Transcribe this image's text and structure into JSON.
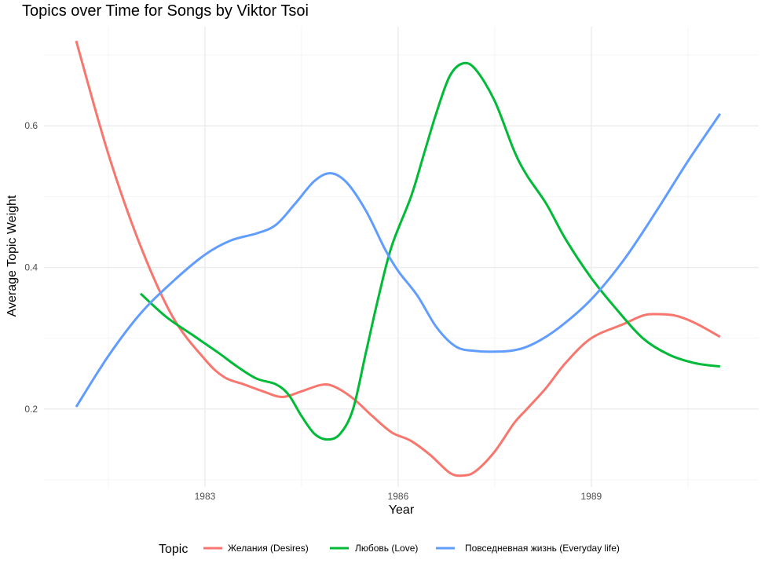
{
  "chart_data": {
    "type": "line",
    "title": "Topics over Time for Songs by Viktor Tsoi",
    "xlabel": "Year",
    "ylabel": "Average Topic Weight",
    "xlim": [
      1980.5,
      1991.6
    ],
    "ylim": [
      0.09,
      0.74
    ],
    "x_major_ticks": [
      1983,
      1986,
      1989
    ],
    "x_tick_labels": [
      "1983",
      "1986",
      "1989"
    ],
    "x_minor_ticks": [
      1981.5,
      1984.5,
      1987.5,
      1990.5
    ],
    "y_major_ticks": [
      0.2,
      0.4,
      0.6
    ],
    "y_tick_labels": [
      "0.2",
      "0.4",
      "0.6"
    ],
    "y_minor_ticks": [
      0.1,
      0.3,
      0.5,
      0.7
    ],
    "grid": true,
    "legend": {
      "title": "Topic",
      "position": "bottom"
    },
    "series": [
      {
        "name": "Желания (Desires)",
        "color": "#F8766D",
        "points": [
          [
            1981.0,
            0.72
          ],
          [
            1981.5,
            0.56
          ],
          [
            1982.0,
            0.43
          ],
          [
            1982.5,
            0.33
          ],
          [
            1983.0,
            0.27
          ],
          [
            1983.3,
            0.245
          ],
          [
            1983.6,
            0.235
          ],
          [
            1983.9,
            0.225
          ],
          [
            1984.2,
            0.217
          ],
          [
            1984.5,
            0.225
          ],
          [
            1984.8,
            0.234
          ],
          [
            1985.0,
            0.232
          ],
          [
            1985.3,
            0.215
          ],
          [
            1985.6,
            0.19
          ],
          [
            1985.9,
            0.167
          ],
          [
            1986.2,
            0.155
          ],
          [
            1986.5,
            0.135
          ],
          [
            1986.8,
            0.11
          ],
          [
            1987.0,
            0.106
          ],
          [
            1987.2,
            0.112
          ],
          [
            1987.5,
            0.14
          ],
          [
            1987.8,
            0.18
          ],
          [
            1988.0,
            0.2
          ],
          [
            1988.3,
            0.23
          ],
          [
            1988.6,
            0.265
          ],
          [
            1989.0,
            0.3
          ],
          [
            1989.5,
            0.32
          ],
          [
            1989.8,
            0.332
          ],
          [
            1990.0,
            0.334
          ],
          [
            1990.3,
            0.332
          ],
          [
            1990.6,
            0.322
          ],
          [
            1991.0,
            0.302
          ]
        ]
      },
      {
        "name": "Любовь (Love)",
        "color": "#00BA38",
        "points": [
          [
            1982.0,
            0.363
          ],
          [
            1982.4,
            0.33
          ],
          [
            1982.8,
            0.305
          ],
          [
            1983.2,
            0.28
          ],
          [
            1983.5,
            0.26
          ],
          [
            1983.8,
            0.243
          ],
          [
            1984.1,
            0.235
          ],
          [
            1984.3,
            0.22
          ],
          [
            1984.5,
            0.19
          ],
          [
            1984.7,
            0.165
          ],
          [
            1984.9,
            0.157
          ],
          [
            1985.1,
            0.165
          ],
          [
            1985.3,
            0.2
          ],
          [
            1985.5,
            0.28
          ],
          [
            1985.7,
            0.36
          ],
          [
            1985.9,
            0.43
          ],
          [
            1986.2,
            0.5
          ],
          [
            1986.4,
            0.56
          ],
          [
            1986.6,
            0.62
          ],
          [
            1986.8,
            0.67
          ],
          [
            1987.0,
            0.688
          ],
          [
            1987.2,
            0.68
          ],
          [
            1987.5,
            0.635
          ],
          [
            1987.8,
            0.565
          ],
          [
            1988.0,
            0.53
          ],
          [
            1988.3,
            0.49
          ],
          [
            1988.6,
            0.44
          ],
          [
            1989.0,
            0.385
          ],
          [
            1989.4,
            0.34
          ],
          [
            1989.8,
            0.3
          ],
          [
            1990.2,
            0.277
          ],
          [
            1990.6,
            0.265
          ],
          [
            1991.0,
            0.26
          ]
        ]
      },
      {
        "name": "Повседневная жизнь (Everyday life)",
        "color": "#619CFF",
        "points": [
          [
            1981.0,
            0.203
          ],
          [
            1981.5,
            0.275
          ],
          [
            1982.0,
            0.335
          ],
          [
            1982.5,
            0.38
          ],
          [
            1983.0,
            0.418
          ],
          [
            1983.4,
            0.438
          ],
          [
            1983.8,
            0.448
          ],
          [
            1984.1,
            0.46
          ],
          [
            1984.4,
            0.49
          ],
          [
            1984.7,
            0.522
          ],
          [
            1984.95,
            0.533
          ],
          [
            1985.2,
            0.52
          ],
          [
            1985.5,
            0.48
          ],
          [
            1985.8,
            0.425
          ],
          [
            1986.0,
            0.395
          ],
          [
            1986.3,
            0.36
          ],
          [
            1986.6,
            0.315
          ],
          [
            1986.9,
            0.288
          ],
          [
            1987.2,
            0.282
          ],
          [
            1987.5,
            0.281
          ],
          [
            1987.8,
            0.283
          ],
          [
            1988.1,
            0.292
          ],
          [
            1988.5,
            0.315
          ],
          [
            1989.0,
            0.355
          ],
          [
            1989.5,
            0.41
          ],
          [
            1990.0,
            0.478
          ],
          [
            1990.5,
            0.55
          ],
          [
            1991.0,
            0.617
          ]
        ]
      }
    ]
  }
}
